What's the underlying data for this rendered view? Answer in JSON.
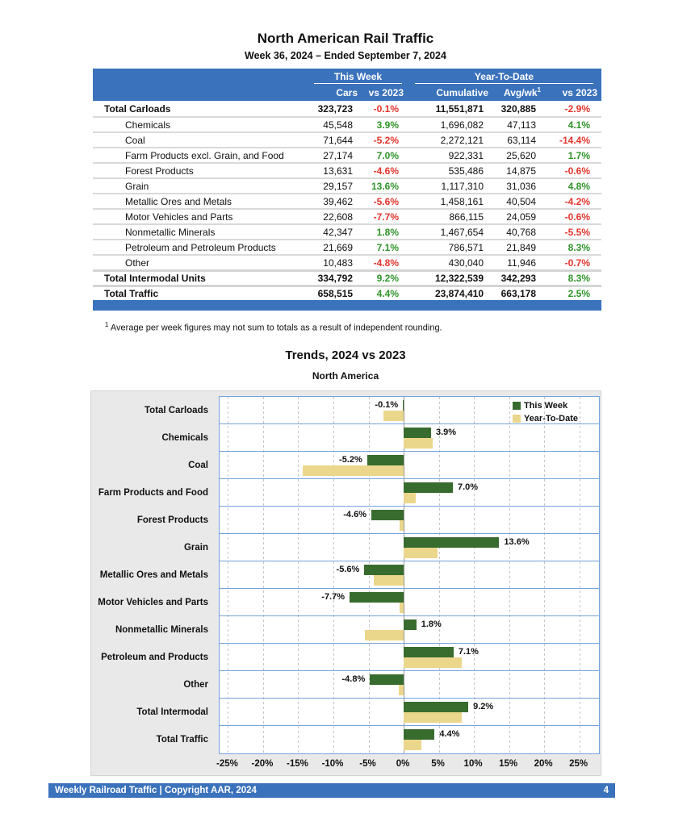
{
  "page": {
    "title": "North American Rail Traffic",
    "subtitle": "Week 36, 2024 – Ended September 7, 2024",
    "footnote_sup": "1",
    "footnote": "Average per week figures may not sum to totals as a result of independent rounding.",
    "footer_left": "Weekly Railroad Traffic | Copyright AAR, 2024",
    "footer_page_number": "4"
  },
  "colors": {
    "header_blue": "#3A72BC",
    "positive_green": "#2E9428",
    "negative_red": "#E2342B",
    "bar_green": "#386C2E",
    "bar_tan": "#EBD78C"
  },
  "table": {
    "group_this_week": "This Week",
    "group_ytd": "Year-To-Date",
    "col_cars": "Cars",
    "col_vs2023_week": "vs 2023",
    "col_cumulative": "Cumulative",
    "col_avgwk": "Avg/wk",
    "col_avgwk_sup": "1",
    "col_vs2023_ytd": "vs 2023",
    "rows": [
      {
        "label": "Total Carloads",
        "style": "total",
        "sep": "normal",
        "cars": "323,723",
        "wk_pct": "-0.1%",
        "cumulative": "11,551,871",
        "avg_wk": "320,885",
        "ytd_pct": "-2.9%"
      },
      {
        "label": "Chemicals",
        "style": "sub",
        "sep": "normal",
        "cars": "45,548",
        "wk_pct": "3.9%",
        "cumulative": "1,696,082",
        "avg_wk": "47,113",
        "ytd_pct": "4.1%"
      },
      {
        "label": "Coal",
        "style": "sub",
        "sep": "normal",
        "cars": "71,644",
        "wk_pct": "-5.2%",
        "cumulative": "2,272,121",
        "avg_wk": "63,114",
        "ytd_pct": "-14.4%"
      },
      {
        "label": "Farm Products excl. Grain, and Food",
        "style": "sub",
        "sep": "normal",
        "cars": "27,174",
        "wk_pct": "7.0%",
        "cumulative": "922,331",
        "avg_wk": "25,620",
        "ytd_pct": "1.7%"
      },
      {
        "label": "Forest Products",
        "style": "sub",
        "sep": "normal",
        "cars": "13,631",
        "wk_pct": "-4.6%",
        "cumulative": "535,486",
        "avg_wk": "14,875",
        "ytd_pct": "-0.6%"
      },
      {
        "label": "Grain",
        "style": "sub",
        "sep": "normal",
        "cars": "29,157",
        "wk_pct": "13.6%",
        "cumulative": "1,117,310",
        "avg_wk": "31,036",
        "ytd_pct": "4.8%"
      },
      {
        "label": "Metallic Ores and Metals",
        "style": "sub",
        "sep": "normal",
        "cars": "39,462",
        "wk_pct": "-5.6%",
        "cumulative": "1,458,161",
        "avg_wk": "40,504",
        "ytd_pct": "-4.2%"
      },
      {
        "label": "Motor Vehicles and Parts",
        "style": "sub",
        "sep": "normal",
        "cars": "22,608",
        "wk_pct": "-7.7%",
        "cumulative": "866,115",
        "avg_wk": "24,059",
        "ytd_pct": "-0.6%"
      },
      {
        "label": "Nonmetallic Minerals",
        "style": "sub",
        "sep": "normal",
        "cars": "42,347",
        "wk_pct": "1.8%",
        "cumulative": "1,467,654",
        "avg_wk": "40,768",
        "ytd_pct": "-5.5%"
      },
      {
        "label": "Petroleum and Petroleum Products",
        "style": "sub",
        "sep": "normal",
        "cars": "21,669",
        "wk_pct": "7.1%",
        "cumulative": "786,571",
        "avg_wk": "21,849",
        "ytd_pct": "8.3%"
      },
      {
        "label": "Other",
        "style": "sub",
        "sep": "normal",
        "cars": "10,483",
        "wk_pct": "-4.8%",
        "cumulative": "430,040",
        "avg_wk": "11,946",
        "ytd_pct": "-0.7%"
      },
      {
        "label": "Total Intermodal Units",
        "style": "total",
        "sep": "thick",
        "cars": "334,792",
        "wk_pct": "9.2%",
        "cumulative": "12,322,539",
        "avg_wk": "342,293",
        "ytd_pct": "8.3%"
      },
      {
        "label": "Total Traffic",
        "style": "total",
        "sep": "thick",
        "cars": "658,515",
        "wk_pct": "4.4%",
        "cumulative": "23,874,410",
        "avg_wk": "663,178",
        "ytd_pct": "2.5%"
      }
    ]
  },
  "chart_data": {
    "type": "bar",
    "orientation": "horizontal",
    "title": "Trends, 2024 vs 2023",
    "subtitle": "North America",
    "categories": [
      "Total Carloads",
      "Chemicals",
      "Coal",
      "Farm Products and Food",
      "Forest Products",
      "Grain",
      "Metallic Ores and Metals",
      "Motor Vehicles and Parts",
      "Nonmetallic Minerals",
      "Petroleum and Products",
      "Other",
      "Total Intermodal",
      "Total Traffic"
    ],
    "series": [
      {
        "name": "This Week",
        "color": "#386C2E",
        "values": [
          -0.1,
          3.9,
          -5.2,
          7.0,
          -4.6,
          13.6,
          -5.6,
          -7.7,
          1.8,
          7.1,
          -4.8,
          9.2,
          4.4
        ]
      },
      {
        "name": "Year-To-Date",
        "color": "#EBD78C",
        "values": [
          -2.9,
          4.1,
          -14.4,
          1.7,
          -0.6,
          4.8,
          -4.2,
          -0.6,
          -5.5,
          8.3,
          -0.7,
          8.3,
          2.5
        ]
      }
    ],
    "bar_labels": [
      "-0.1%",
      "3.9%",
      "-5.2%",
      "7.0%",
      "-4.6%",
      "13.6%",
      "-5.6%",
      "-7.7%",
      "1.8%",
      "7.1%",
      "-4.8%",
      "9.2%",
      "4.4%"
    ],
    "xlim": [
      -26.2,
      27.8
    ],
    "xtick_values": [
      -25,
      -20,
      -15,
      -10,
      -5,
      0,
      5,
      10,
      15,
      20,
      25
    ],
    "xticks": [
      "-25%",
      "-20%",
      "-15%",
      "-10%",
      "-5%",
      "0%",
      "5%",
      "10%",
      "15%",
      "20%",
      "25%"
    ],
    "legend_position": "top-right",
    "grid": "vertical-dashed"
  }
}
